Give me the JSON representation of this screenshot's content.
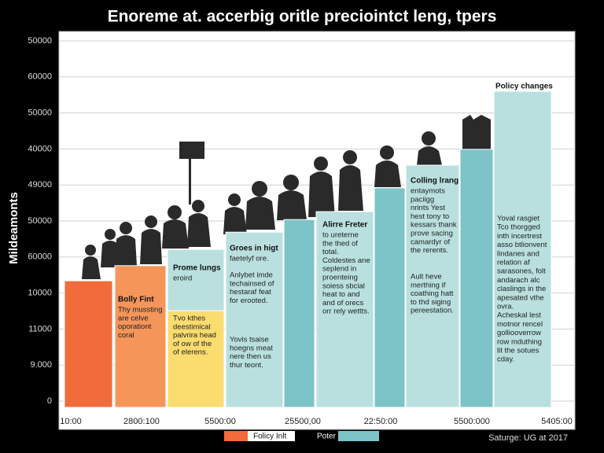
{
  "chart_data": {
    "type": "bar",
    "title": "Enoreme at. accerbig oritle preciointct leng, tpers",
    "y_label": "Mildeamonts",
    "ylim": [
      0,
      10
    ],
    "yticks": [
      {
        "value": 0,
        "label": "0"
      },
      {
        "value": 1,
        "label": "9.000"
      },
      {
        "value": 2,
        "label": "11000"
      },
      {
        "value": 3,
        "label": "10000"
      },
      {
        "value": 4,
        "label": "60000"
      },
      {
        "value": 5,
        "label": "50000"
      },
      {
        "value": 6,
        "label": "49000"
      },
      {
        "value": 7,
        "label": "40000"
      },
      {
        "value": 8,
        "label": "50000"
      },
      {
        "value": 9,
        "label": "60000"
      },
      {
        "value": 10,
        "label": "50000"
      }
    ],
    "grid": true,
    "categories": [
      "10:00",
      "2800:100",
      "5500:00",
      null,
      "25500,00",
      null,
      "22:50:00",
      null,
      "5500:000",
      "5405:00"
    ],
    "series": [
      {
        "name": "Folicy Inlt",
        "color": "#f26b3a",
        "colors": [
          "#f26b3a",
          "#f5955a",
          null,
          null,
          null,
          null,
          null,
          null,
          null,
          null
        ],
        "values": [
          3.34,
          3.76,
          null,
          null,
          null,
          null,
          null,
          null,
          null,
          null
        ]
      },
      {
        "color": "#fbdc6f",
        "colors": [
          null,
          null,
          "#fbdc6f",
          null,
          null,
          null,
          null,
          null,
          null,
          null
        ],
        "values": [
          null,
          null,
          2.51,
          null,
          null,
          null,
          null,
          null,
          null,
          null
        ]
      },
      {
        "name": "Poter",
        "color": "#7cc4c8",
        "colors": [
          null,
          null,
          "#b9e0df",
          "#b9e0df",
          "#7cc4c8",
          "#b9e0df",
          "#7cc4c8",
          "#b9e0df",
          "#7cc4c8",
          "#b9e0df"
        ],
        "values": [
          null,
          null,
          1.7,
          4.69,
          5.04,
          5.26,
          5.92,
          6.55,
          6.99,
          8.6
        ]
      }
    ],
    "top_label": "Policy changes",
    "source": "Saturge: UG at 2017",
    "annotations": [
      {
        "heading": "Bolly Fint",
        "lines": [
          "Thy mussting",
          "are celve",
          "oporationt",
          "coral"
        ]
      },
      {
        "heading": "Prome lungs",
        "lines": [
          "eroird"
        ]
      },
      {
        "lines": [
          "Tvo kthes",
          "deestimical",
          "palvrira head",
          "of ow of the",
          "of elerens."
        ]
      },
      {
        "heading": "Groes in higt",
        "lines": [
          "faetelyf ore."
        ]
      },
      {
        "lines": [
          "Anlybet imde",
          "techainsed of",
          "hestaraf feat",
          "for erooted."
        ]
      },
      {
        "lines": [
          "Yovis tsaise",
          "hoegns meat",
          "nere then us",
          "thur teont."
        ]
      },
      {
        "heading": "Alirre Freter",
        "lines": [
          "to ureterne",
          "the thed of",
          "total.",
          "Coldestes ane",
          "seplend in",
          "proenteing",
          "soiess sbcial",
          "heat to and",
          "and of orecs",
          "orr rely wettts."
        ]
      },
      {
        "heading": "Colling lrang",
        "lines": [
          "entaymots",
          "paciigg",
          "nrints Yest",
          "hest tony to",
          "kessars thank",
          "prove sacing",
          "camardyr of",
          "the rerents."
        ]
      },
      {
        "lines": [
          "Ault heve",
          "merthing if",
          "coathing hatt",
          "to thd siging",
          "pereestation."
        ]
      },
      {
        "lines": [
          "Yoval rasgiet",
          "Tco thorgged",
          "inth incertrest",
          "asso btlionvent",
          "lindanes and",
          "relation af",
          "sarasones, folt",
          "andarach alc",
          "claslings in the",
          "apesated vthe",
          "ovra.",
          "Acheskal lest",
          "motnor rencel",
          "golliooverrow",
          "row mduthing",
          "lit the sotues",
          "cday."
        ]
      }
    ]
  }
}
